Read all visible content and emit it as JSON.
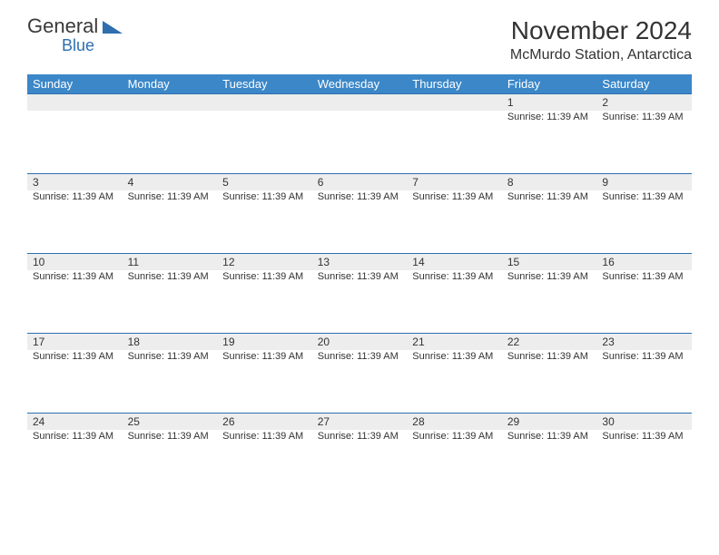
{
  "logo": {
    "text1": "General",
    "text2": "Blue",
    "color1": "#3a3a3a",
    "color2": "#2f6fb0"
  },
  "title": "November 2024",
  "location": "McMurdo Station, Antarctica",
  "colors": {
    "header_bg": "#3b87c8",
    "header_text": "#ffffff",
    "border": "#2f6fb0",
    "daynum_bg": "#ededed",
    "text": "#333333",
    "background": "#ffffff"
  },
  "day_names": [
    "Sunday",
    "Monday",
    "Tuesday",
    "Wednesday",
    "Thursday",
    "Friday",
    "Saturday"
  ],
  "weeks": [
    [
      {
        "day": "",
        "event": ""
      },
      {
        "day": "",
        "event": ""
      },
      {
        "day": "",
        "event": ""
      },
      {
        "day": "",
        "event": ""
      },
      {
        "day": "",
        "event": ""
      },
      {
        "day": "1",
        "event": "Sunrise: 11:39 AM"
      },
      {
        "day": "2",
        "event": "Sunrise: 11:39 AM"
      }
    ],
    [
      {
        "day": "3",
        "event": "Sunrise: 11:39 AM"
      },
      {
        "day": "4",
        "event": "Sunrise: 11:39 AM"
      },
      {
        "day": "5",
        "event": "Sunrise: 11:39 AM"
      },
      {
        "day": "6",
        "event": "Sunrise: 11:39 AM"
      },
      {
        "day": "7",
        "event": "Sunrise: 11:39 AM"
      },
      {
        "day": "8",
        "event": "Sunrise: 11:39 AM"
      },
      {
        "day": "9",
        "event": "Sunrise: 11:39 AM"
      }
    ],
    [
      {
        "day": "10",
        "event": "Sunrise: 11:39 AM"
      },
      {
        "day": "11",
        "event": "Sunrise: 11:39 AM"
      },
      {
        "day": "12",
        "event": "Sunrise: 11:39 AM"
      },
      {
        "day": "13",
        "event": "Sunrise: 11:39 AM"
      },
      {
        "day": "14",
        "event": "Sunrise: 11:39 AM"
      },
      {
        "day": "15",
        "event": "Sunrise: 11:39 AM"
      },
      {
        "day": "16",
        "event": "Sunrise: 11:39 AM"
      }
    ],
    [
      {
        "day": "17",
        "event": "Sunrise: 11:39 AM"
      },
      {
        "day": "18",
        "event": "Sunrise: 11:39 AM"
      },
      {
        "day": "19",
        "event": "Sunrise: 11:39 AM"
      },
      {
        "day": "20",
        "event": "Sunrise: 11:39 AM"
      },
      {
        "day": "21",
        "event": "Sunrise: 11:39 AM"
      },
      {
        "day": "22",
        "event": "Sunrise: 11:39 AM"
      },
      {
        "day": "23",
        "event": "Sunrise: 11:39 AM"
      }
    ],
    [
      {
        "day": "24",
        "event": "Sunrise: 11:39 AM"
      },
      {
        "day": "25",
        "event": "Sunrise: 11:39 AM"
      },
      {
        "day": "26",
        "event": "Sunrise: 11:39 AM"
      },
      {
        "day": "27",
        "event": "Sunrise: 11:39 AM"
      },
      {
        "day": "28",
        "event": "Sunrise: 11:39 AM"
      },
      {
        "day": "29",
        "event": "Sunrise: 11:39 AM"
      },
      {
        "day": "30",
        "event": "Sunrise: 11:39 AM"
      }
    ]
  ]
}
